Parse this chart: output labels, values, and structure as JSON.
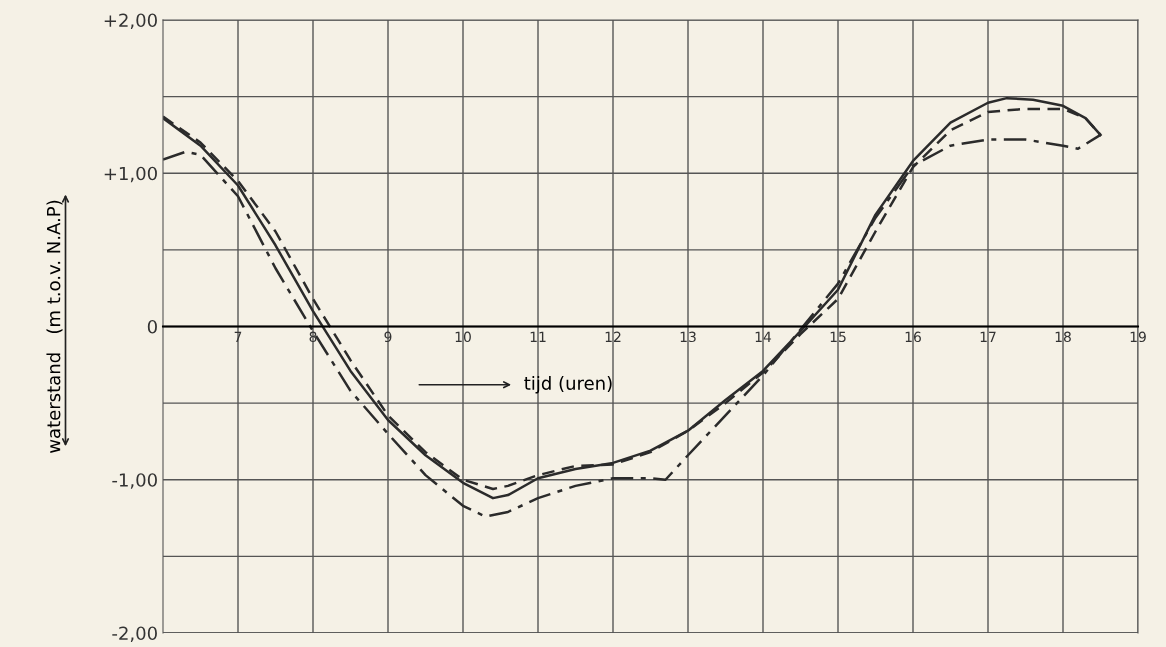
{
  "chart_data": {
    "type": "line",
    "ylabel": "waterstand   (m t.o.v. N.A.P)",
    "annotations": [
      "tijd (uren)"
    ],
    "xlim": [
      6,
      19
    ],
    "xticks": [
      7,
      8,
      9,
      10,
      11,
      12,
      13,
      14,
      15,
      16,
      17,
      18,
      19
    ],
    "ylim": [
      -2,
      2
    ],
    "yticks": [
      {
        "value": 2,
        "label": "+2,00"
      },
      {
        "value": 1.5,
        "label": null
      },
      {
        "value": 1,
        "label": "+1,00"
      },
      {
        "value": 0.5,
        "label": null
      },
      {
        "value": 0,
        "label": "0"
      },
      {
        "value": -0.5,
        "label": null
      },
      {
        "value": -1,
        "label": "-1,00"
      },
      {
        "value": -1.5,
        "label": null
      },
      {
        "value": -2,
        "label": "-2,00"
      }
    ],
    "grid": true,
    "marker": "none",
    "series": [
      {
        "color": "#2b2b2b",
        "line_style": "solid",
        "x": [
          6,
          6.5,
          7,
          7.5,
          8,
          8.5,
          9,
          9.5,
          10,
          10.4,
          10.6,
          11,
          11.5,
          12,
          12.5,
          13,
          13.5,
          14,
          14.5,
          15,
          15.5,
          16,
          16.5,
          17,
          17.25,
          17.6,
          18,
          18.3,
          18.5
        ],
        "values": [
          1.36,
          1.18,
          0.92,
          0.53,
          0.1,
          -0.29,
          -0.61,
          -0.84,
          -1.02,
          -1.12,
          -1.1,
          -0.99,
          -0.93,
          -0.89,
          -0.81,
          -0.68,
          -0.48,
          -0.29,
          -0.03,
          0.24,
          0.73,
          1.08,
          1.33,
          1.46,
          1.49,
          1.48,
          1.44,
          1.36,
          1.25
        ]
      },
      {
        "color": "#2b2b2b",
        "line_style": "dashed",
        "x": [
          6,
          6.5,
          7,
          7.5,
          8,
          8.5,
          9,
          9.5,
          10,
          10.4,
          10.6,
          11,
          11.5,
          12,
          12.5,
          13,
          13.5,
          14,
          14.5,
          15,
          15.5,
          16,
          16.5,
          17,
          17.5,
          18,
          18.3,
          18.5
        ],
        "values": [
          1.37,
          1.2,
          0.95,
          0.62,
          0.18,
          -0.22,
          -0.58,
          -0.82,
          -1.0,
          -1.06,
          -1.04,
          -0.97,
          -0.91,
          -0.9,
          -0.82,
          -0.68,
          -0.5,
          -0.3,
          -0.05,
          0.18,
          0.62,
          1.04,
          1.28,
          1.4,
          1.42,
          1.42,
          1.36,
          1.25
        ]
      },
      {
        "color": "#2b2b2b",
        "line_style": "dashdot",
        "x": [
          6,
          6.3,
          6.5,
          7,
          7.5,
          8,
          8.5,
          9,
          9.5,
          10,
          10.3,
          10.6,
          11,
          11.5,
          12,
          12.5,
          12.7,
          13,
          13.5,
          14,
          14.5,
          15,
          15.5,
          16,
          16.5,
          17,
          17.5,
          18,
          18.2,
          18.5
        ],
        "values": [
          1.09,
          1.14,
          1.12,
          0.85,
          0.38,
          -0.03,
          -0.42,
          -0.7,
          -0.97,
          -1.17,
          -1.24,
          -1.21,
          -1.12,
          -1.04,
          -0.99,
          -0.99,
          -1.0,
          -0.84,
          -0.58,
          -0.32,
          -0.02,
          0.28,
          0.71,
          1.05,
          1.18,
          1.22,
          1.22,
          1.18,
          1.16,
          1.25
        ]
      }
    ]
  }
}
